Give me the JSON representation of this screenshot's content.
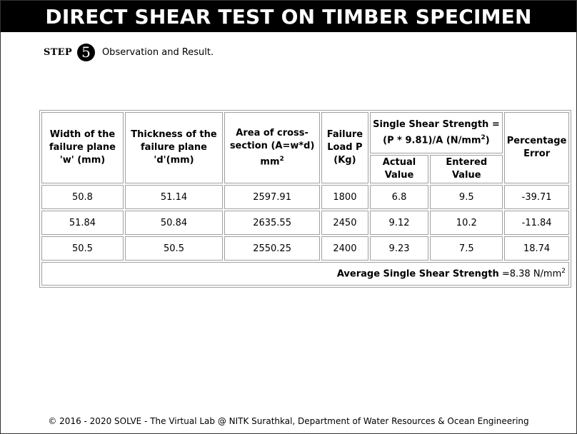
{
  "page": {
    "title": "DIRECT SHEAR TEST ON TIMBER SPECIMEN",
    "step_label": "STEP",
    "step_number": "5",
    "step_text": "Observation and Result."
  },
  "table": {
    "headers": {
      "width": "Width of the failure plane 'w' (mm)",
      "thickness": "Thickness of the failure plane 'd'(mm)",
      "area_main": "Area of cross-section (A=w*d) mm",
      "area_sup": "2",
      "load": "Failure Load P (Kg)",
      "strength_main": "Single Shear Strength = (P * 9.81)/A (N/mm",
      "strength_sup": "2",
      "strength_close": ")",
      "actual": "Actual Value",
      "entered": "Entered Value",
      "error": "Percentage Error"
    },
    "rows": [
      {
        "w": "50.8",
        "d": "51.14",
        "area": "2597.91",
        "load": "1800",
        "actual": "6.8",
        "entered": "9.5",
        "error": "-39.71"
      },
      {
        "w": "51.84",
        "d": "50.84",
        "area": "2635.55",
        "load": "2450",
        "actual": "9.12",
        "entered": "10.2",
        "error": "-11.84"
      },
      {
        "w": "50.5",
        "d": "50.5",
        "area": "2550.25",
        "load": "2400",
        "actual": "9.23",
        "entered": "7.5",
        "error": "18.74"
      }
    ],
    "average": {
      "label": "Average Single Shear Strength",
      "value": "=8.38 N/mm",
      "sup": "2"
    }
  },
  "footer": {
    "text": "© 2016 - 2020 SOLVE - The Virtual Lab @ NITK Surathkal, Department of Water Resources & Ocean Engineering"
  }
}
